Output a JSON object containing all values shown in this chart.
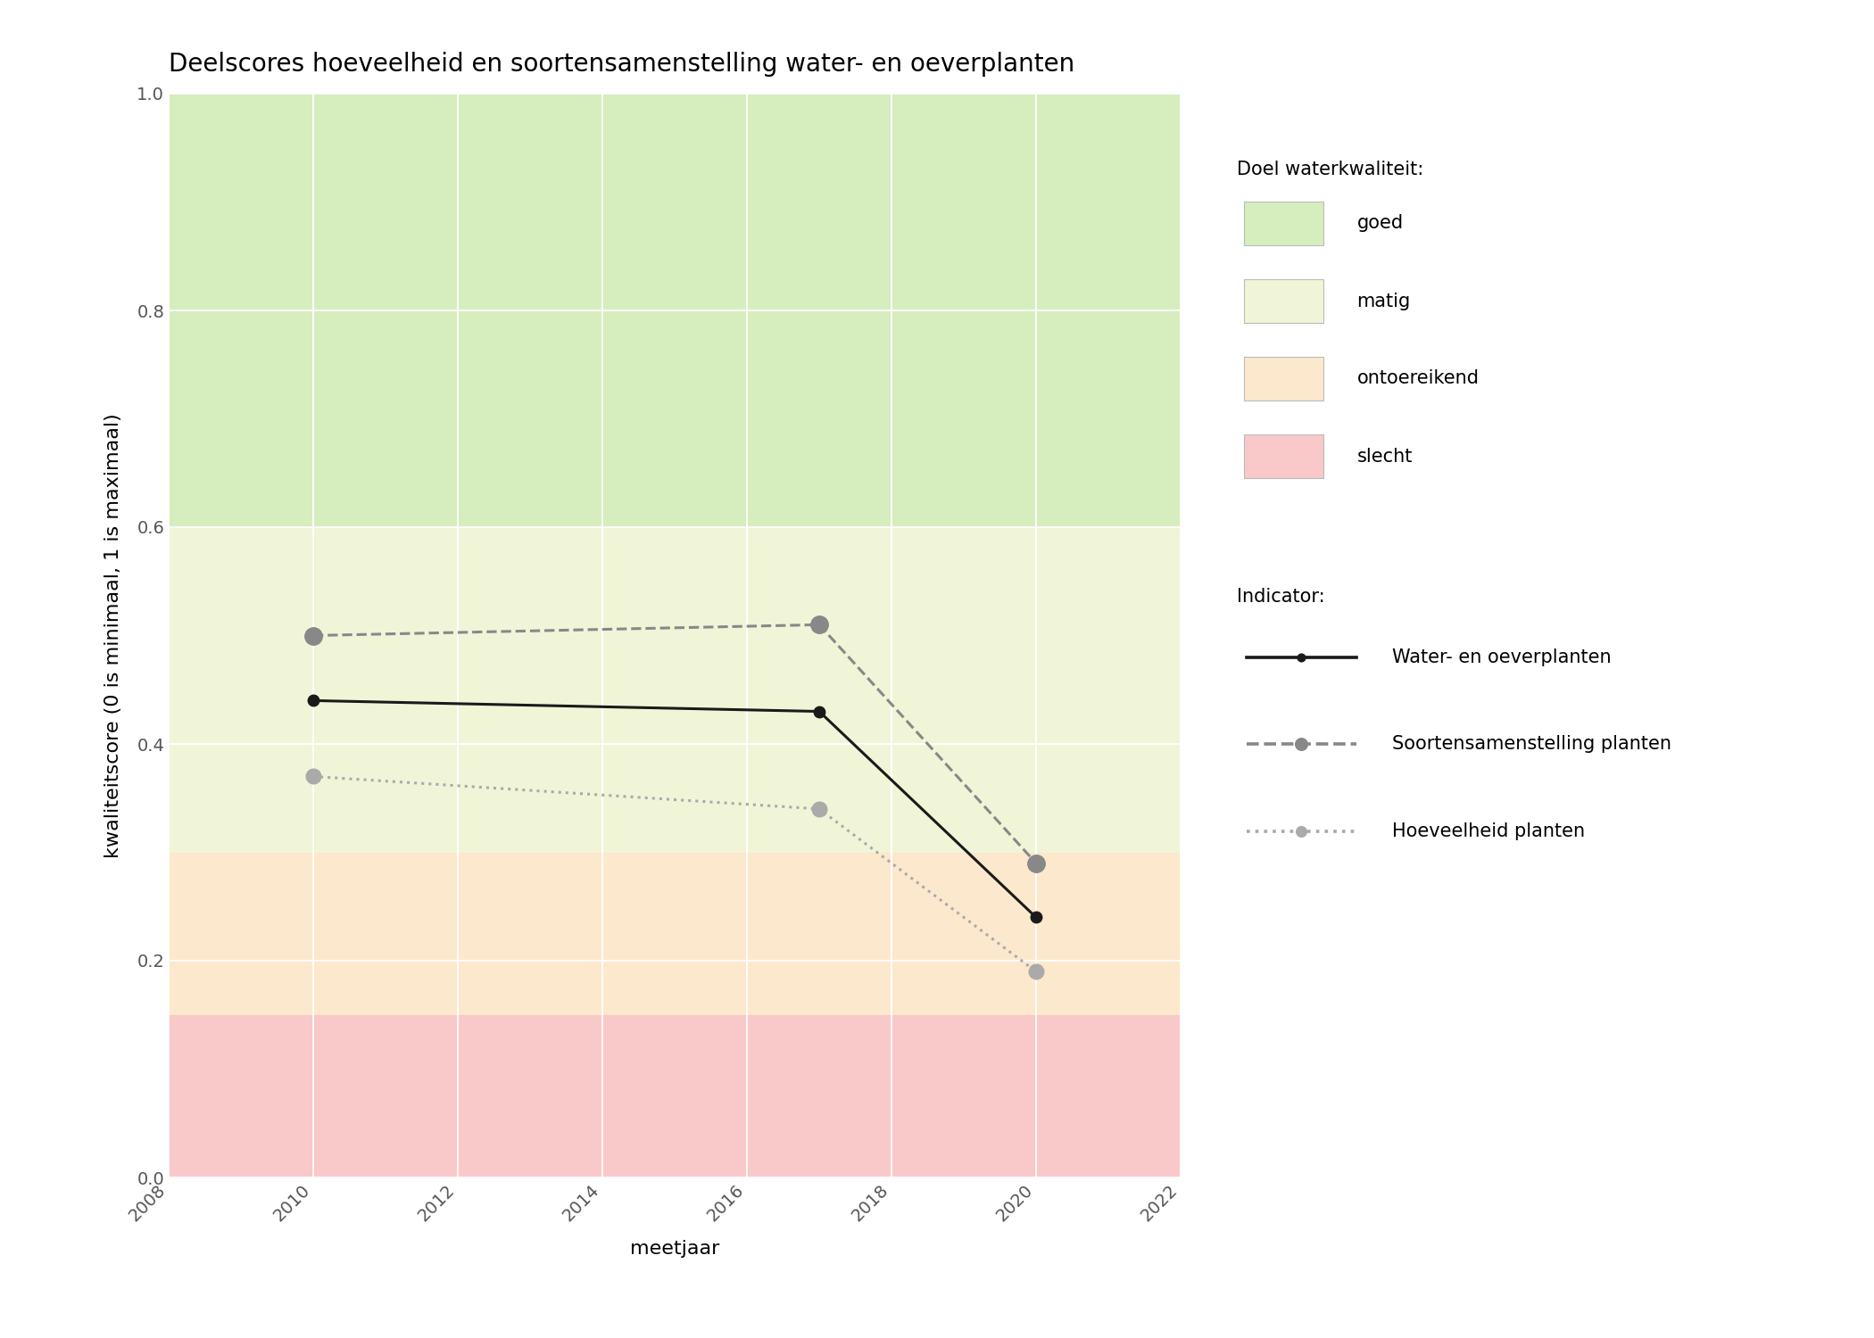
{
  "title": "Deelscores hoeveelheid en soortensamenstelling water- en oeverplanten",
  "xlabel": "meetjaar",
  "ylabel": "kwaliteitscore (0 is minimaal, 1 is maximaal)",
  "xlim": [
    2008,
    2022
  ],
  "ylim": [
    0.0,
    1.0
  ],
  "xticks": [
    2008,
    2010,
    2012,
    2014,
    2016,
    2018,
    2020,
    2022
  ],
  "yticks": [
    0.0,
    0.2,
    0.4,
    0.6,
    0.8,
    1.0
  ],
  "bg_colors": [
    {
      "name": "goed",
      "ymin": 0.6,
      "ymax": 1.0,
      "color": "#d6edbe"
    },
    {
      "name": "matig",
      "ymin": 0.3,
      "ymax": 0.6,
      "color": "#f0f5d8"
    },
    {
      "name": "ontoereikend",
      "ymin": 0.15,
      "ymax": 0.3,
      "color": "#fce8cc"
    },
    {
      "name": "slecht",
      "ymin": 0.0,
      "ymax": 0.15,
      "color": "#f9c8c8"
    }
  ],
  "lines": [
    {
      "key": "water_oever",
      "label": "Water- en oeverplanten",
      "x": [
        2010,
        2017,
        2020
      ],
      "y": [
        0.44,
        0.43,
        0.24
      ],
      "color": "#1a1a1a",
      "linestyle": "-",
      "linewidth": 2.2,
      "markersize": 9,
      "marker": "o",
      "zorder": 5
    },
    {
      "key": "soorten",
      "label": "Soortensamenstelling planten",
      "x": [
        2010,
        2017,
        2020
      ],
      "y": [
        0.5,
        0.51,
        0.29
      ],
      "color": "#888888",
      "linestyle": "--",
      "linewidth": 2.2,
      "markersize": 14,
      "marker": "o",
      "zorder": 4
    },
    {
      "key": "hoeveelheid",
      "label": "Hoeveelheid planten",
      "x": [
        2010,
        2017,
        2020
      ],
      "y": [
        0.37,
        0.34,
        0.19
      ],
      "color": "#aaaaaa",
      "linestyle": ":",
      "linewidth": 2.2,
      "markersize": 12,
      "marker": "o",
      "zorder": 3
    }
  ],
  "legend_title_doel": "Doel waterkwaliteit:",
  "legend_title_indicator": "Indicator:",
  "doel_labels": [
    "goed",
    "matig",
    "ontoereikend",
    "slecht"
  ],
  "doel_colors": [
    "#d6edbe",
    "#f0f5d8",
    "#fce8cc",
    "#f9c8c8"
  ],
  "background_color": "#ffffff",
  "plot_bg_color": "#ffffff",
  "title_fontsize": 20,
  "label_fontsize": 16,
  "tick_fontsize": 14,
  "legend_fontsize": 15
}
